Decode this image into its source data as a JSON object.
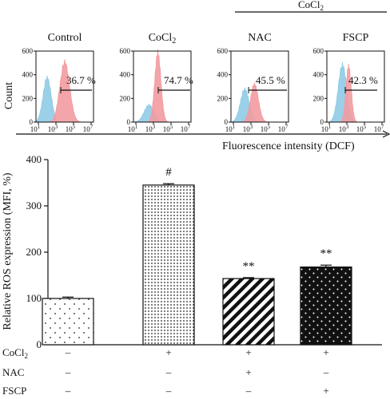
{
  "chart_data": [
    {
      "type": "histogram",
      "group_label": "CoCl2",
      "ylabel": "Count",
      "xlabel": "Fluorescence intensity (DCF)",
      "ylim": [
        0,
        600
      ],
      "yticks": [
        "0",
        "200",
        "400",
        "600"
      ],
      "xticks": [
        "10^1",
        "10^3",
        "10^5",
        "10^7"
      ],
      "log_x": true,
      "panels": [
        {
          "title": "Control",
          "percent_label": "36.7 %"
        },
        {
          "title": "CoCl2",
          "percent_label": "74.7 %"
        },
        {
          "title": "NAC",
          "percent_label": "45.5 %"
        },
        {
          "title": "FSCP",
          "percent_label": "42.3 %"
        }
      ],
      "series_colors": [
        "#8fcbe6",
        "#f29ba0"
      ]
    },
    {
      "type": "bar",
      "ylabel": "Relative ROS expression (MFI, %)",
      "ylim": [
        0,
        400
      ],
      "yticks": [
        0,
        100,
        200,
        300,
        400
      ],
      "grid": false,
      "values": [
        100,
        345,
        143,
        168
      ],
      "errors": [
        3,
        3,
        2,
        4
      ],
      "annotations": [
        "",
        "#",
        "**",
        "**"
      ],
      "condition_rows": [
        {
          "label": "CoCl2",
          "values": [
            "–",
            "+",
            "+",
            "+"
          ]
        },
        {
          "label": "NAC",
          "values": [
            "–",
            "–",
            "+",
            "–"
          ]
        },
        {
          "label": "FSCP",
          "values": [
            "–",
            "–",
            "–",
            "+"
          ]
        }
      ]
    }
  ]
}
